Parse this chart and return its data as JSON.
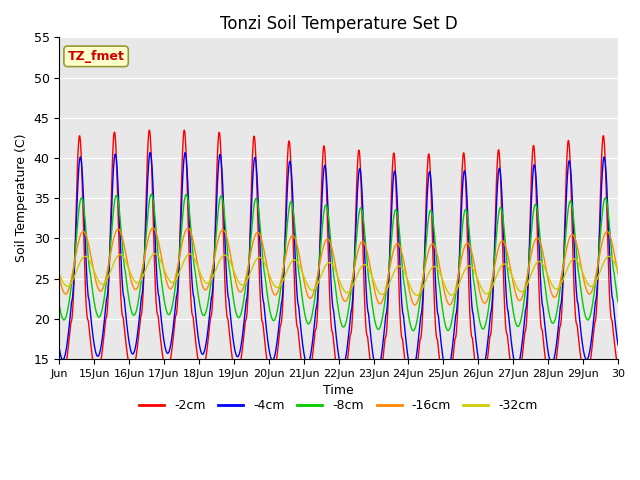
{
  "title": "Tonzi Soil Temperature Set D",
  "xlabel": "Time",
  "ylabel": "Soil Temperature (C)",
  "ylim": [
    15,
    55
  ],
  "xlim": [
    0,
    16
  ],
  "annotation_text": "TZ_fmet",
  "annotation_color": "#cc0000",
  "annotation_bg": "#ffffcc",
  "bg_color": "#e8e8e8",
  "line_colors": {
    "-2cm": "#ff0000",
    "-4cm": "#0000ff",
    "-8cm": "#00cc00",
    "-16cm": "#ff8800",
    "-32cm": "#cccc00"
  },
  "legend_labels": [
    "-2cm",
    "-4cm",
    "-8cm",
    "-16cm",
    "-32cm"
  ],
  "x_tick_labels": [
    "Jun",
    "15Jun",
    "16Jun",
    "17Jun",
    "18Jun",
    "19Jun",
    "20Jun",
    "21Jun",
    "22Jun",
    "23Jun",
    "24Jun",
    "25Jun",
    "26Jun",
    "27Jun",
    "28Jun",
    "29Jun",
    "30"
  ],
  "x_tick_positions": [
    0,
    1,
    2,
    3,
    4,
    5,
    6,
    7,
    8,
    9,
    10,
    11,
    12,
    13,
    14,
    15,
    16
  ]
}
